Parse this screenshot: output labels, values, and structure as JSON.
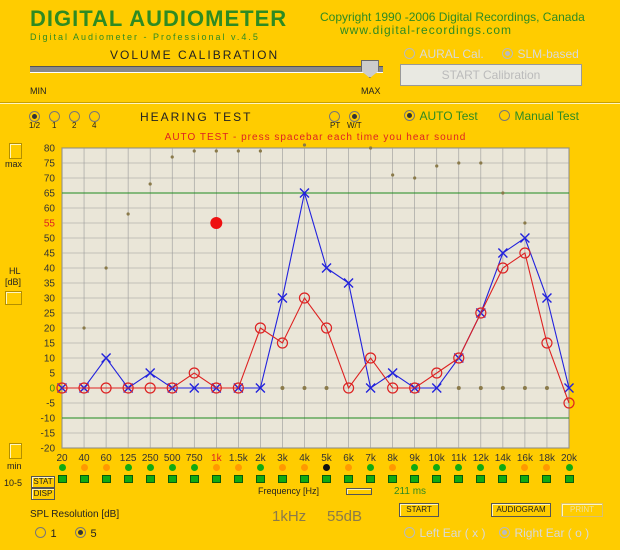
{
  "header": {
    "title": "DIGITAL AUDIOMETER",
    "subtitle": "Digital Audiometer - Professional v.4.5",
    "copyright": "Copyright 1990 -2006 Digital Recordings, Canada",
    "website": "www.digital-recordings.com"
  },
  "volume": {
    "title": "VOLUME CALIBRATION",
    "min_label": "MIN",
    "max_label": "MAX",
    "level": 0.96
  },
  "calibration": {
    "aural_label": "AURAL Cal.",
    "slm_label": "SLM-based",
    "slm_selected": true,
    "start_label": "START Calibration"
  },
  "speed": {
    "options": [
      "1/2",
      "1",
      "2",
      "4"
    ],
    "selected": "1/2"
  },
  "hearing_test_label": "HEARING TEST",
  "pt_label": "PT",
  "wt_label": "W/T",
  "mode": {
    "auto_label": "AUTO Test",
    "manual_label": "Manual Test",
    "selected": "auto"
  },
  "side": {
    "max_label": "max",
    "hl_label": "HL",
    "db_label": "[dB]",
    "min_label": "min",
    "ten5_label": "10-5"
  },
  "stat_label": "STAT",
  "disp_label": "DISP",
  "frequency_label": "Frequency [Hz]",
  "ms_label": "211 ms",
  "spl": {
    "title": "SPL Resolution [dB]",
    "options": [
      "1",
      "5"
    ],
    "selected": "5"
  },
  "readout": {
    "freq": "1kHz",
    "level": "55dB"
  },
  "buttons": {
    "start": "START",
    "audiogram": "AUDIOGRAM",
    "print": "PRINT"
  },
  "ears": {
    "left_label": "Left Ear ( x )",
    "right_label": "Right Ear ( o )",
    "selected": "right"
  },
  "colors": {
    "background": "#FFCC00",
    "plot_bg": "#EAE6D8",
    "grid": "#999999",
    "green_line": "#1E8A1E",
    "left_ear": "#2222DD",
    "right_ear": "#DD2222",
    "accent_green": "#2E8B22"
  },
  "chart_data": {
    "type": "line",
    "title": "AUTO TEST - press spacebar each time you hear sound",
    "xlabel": "Frequency [Hz]",
    "ylabel": "HL [dB]",
    "ylim": [
      -20,
      80
    ],
    "yticks": [
      80,
      75,
      70,
      65,
      60,
      55,
      50,
      45,
      40,
      35,
      30,
      25,
      20,
      15,
      10,
      5,
      0,
      -5,
      -10,
      -15,
      -20
    ],
    "categories": [
      "20",
      "40",
      "60",
      "125",
      "250",
      "500",
      "750",
      "1k",
      "1.5k",
      "2k",
      "3k",
      "4k",
      "5k",
      "6k",
      "7k",
      "8k",
      "9k",
      "10k",
      "11k",
      "12k",
      "14k",
      "16k",
      "18k",
      "20k"
    ],
    "highlight_category": "1k",
    "reference_lines": [
      65,
      -10
    ],
    "series": [
      {
        "name": "Left Ear ( x )",
        "marker": "x",
        "values": [
          0,
          0,
          10,
          0,
          5,
          0,
          0,
          0,
          0,
          0,
          30,
          65,
          40,
          35,
          0,
          5,
          0,
          0,
          10,
          25,
          45,
          50,
          30,
          0
        ]
      },
      {
        "name": "Right Ear ( o )",
        "marker": "o",
        "values": [
          0,
          0,
          0,
          0,
          0,
          0,
          5,
          0,
          0,
          20,
          15,
          30,
          20,
          0,
          10,
          0,
          0,
          5,
          10,
          25,
          40,
          45,
          15,
          -5
        ]
      }
    ],
    "top_dots": [
      null,
      20,
      40,
      58,
      68,
      77,
      79,
      79,
      79,
      79,
      null,
      81,
      null,
      null,
      80,
      71,
      70,
      74,
      75,
      75,
      65,
      55,
      null,
      null
    ],
    "current_point": {
      "x": "1k",
      "y": 55
    },
    "led_row1": [
      "#11AA11",
      "#FF9900",
      "#FF9900",
      "#11AA11",
      "#11AA11",
      "#11AA11",
      "#11AA11",
      "#FF9900",
      "#FF9900",
      "#11AA11",
      "#FF9900",
      "#FF9900",
      "#111111",
      "#FF9900",
      "#11AA11",
      "#FF9900",
      "#11AA11",
      "#11AA11",
      "#11AA11",
      "#11AA11",
      "#11AA11",
      "#FF9900",
      "#FF9900",
      "#11AA11"
    ],
    "led_row2": [
      "#11AA11",
      "#11AA11",
      "#11AA11",
      "#11AA11",
      "#11AA11",
      "#11AA11",
      "#11AA11",
      "#11AA11",
      "#11AA11",
      "#11AA11",
      "#11AA11",
      "#FF2222",
      "#11AA11",
      "#11AA11",
      "#11AA11",
      "#11AA11",
      "#FF2222",
      "#11AA11",
      "#FF2222",
      "#11AA11",
      "#11AA11",
      "#11AA11",
      "#11AA11",
      "#11AA11"
    ]
  }
}
